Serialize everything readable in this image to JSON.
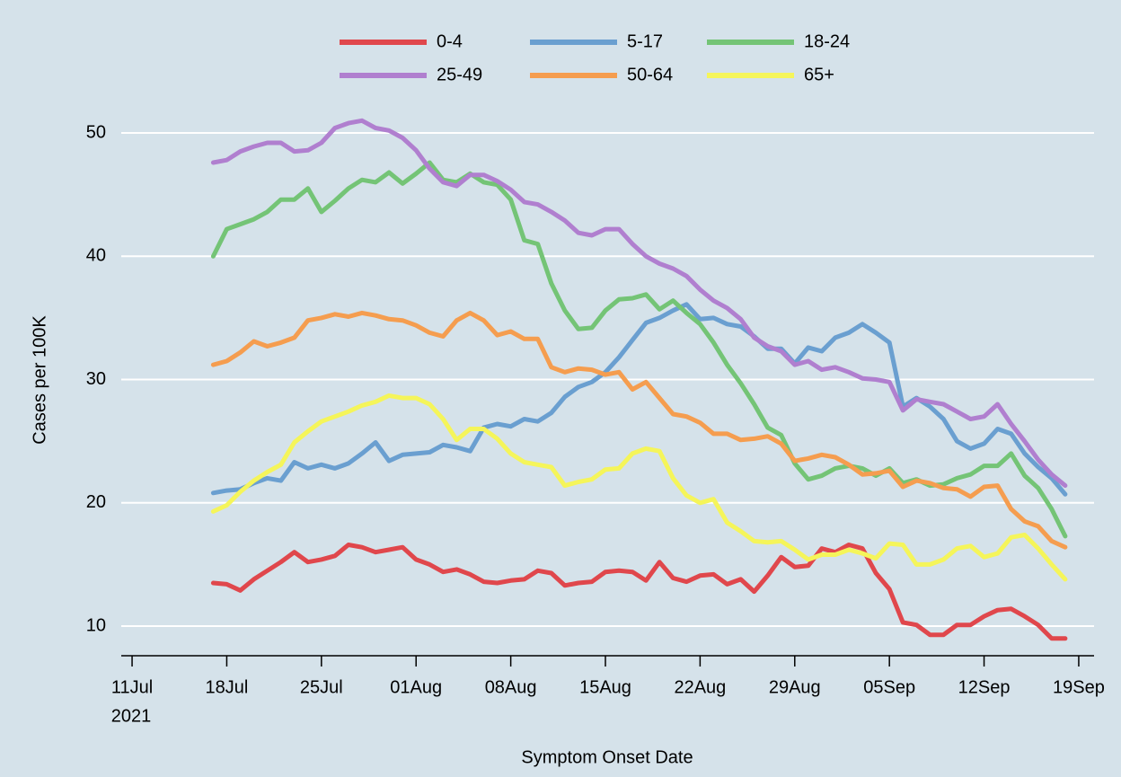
{
  "chart_data": {
    "type": "line",
    "xlabel": "Symptom Onset Date",
    "ylabel": "Cases per 100K",
    "x": [
      "2021-07-17",
      "2021-07-18",
      "2021-07-19",
      "2021-07-20",
      "2021-07-21",
      "2021-07-22",
      "2021-07-23",
      "2021-07-24",
      "2021-07-25",
      "2021-07-26",
      "2021-07-27",
      "2021-07-28",
      "2021-07-29",
      "2021-07-30",
      "2021-07-31",
      "2021-08-01",
      "2021-08-02",
      "2021-08-03",
      "2021-08-04",
      "2021-08-05",
      "2021-08-06",
      "2021-08-07",
      "2021-08-08",
      "2021-08-09",
      "2021-08-10",
      "2021-08-11",
      "2021-08-12",
      "2021-08-13",
      "2021-08-14",
      "2021-08-15",
      "2021-08-16",
      "2021-08-17",
      "2021-08-18",
      "2021-08-19",
      "2021-08-20",
      "2021-08-21",
      "2021-08-22",
      "2021-08-23",
      "2021-08-24",
      "2021-08-25",
      "2021-08-26",
      "2021-08-27",
      "2021-08-28",
      "2021-08-29",
      "2021-08-30",
      "2021-08-31",
      "2021-09-01",
      "2021-09-02",
      "2021-09-03",
      "2021-09-04",
      "2021-09-05",
      "2021-09-06",
      "2021-09-07",
      "2021-09-08",
      "2021-09-09",
      "2021-09-10",
      "2021-09-11",
      "2021-09-12",
      "2021-09-13",
      "2021-09-14",
      "2021-09-15",
      "2021-09-16",
      "2021-09-17",
      "2021-09-18"
    ],
    "series": [
      {
        "name": "0-4",
        "color": "#e0474c",
        "values": [
          13.5,
          13.4,
          12.9,
          13.8,
          14.5,
          15.2,
          16.0,
          15.2,
          15.4,
          15.7,
          16.6,
          16.4,
          16.0,
          16.2,
          16.4,
          15.4,
          15.0,
          14.4,
          14.6,
          14.2,
          13.6,
          13.5,
          13.7,
          13.8,
          14.5,
          14.3,
          13.3,
          13.5,
          13.6,
          14.4,
          14.5,
          14.4,
          13.7,
          15.2,
          13.9,
          13.6,
          14.1,
          14.2,
          13.4,
          13.8,
          12.8,
          14.1,
          15.6,
          14.8,
          14.9,
          16.3,
          16.0,
          16.6,
          16.3,
          14.3,
          13.0,
          10.3,
          10.1,
          9.3,
          9.3,
          10.1,
          10.1,
          10.8,
          11.3,
          11.4,
          10.8,
          10.1,
          9.0,
          9.0
        ]
      },
      {
        "name": "5-17",
        "color": "#6a9fd0",
        "values": [
          20.8,
          21.0,
          21.1,
          21.6,
          22.0,
          21.8,
          23.3,
          22.8,
          23.1,
          22.8,
          23.2,
          24.0,
          24.9,
          23.4,
          23.9,
          24.0,
          24.1,
          24.7,
          24.5,
          24.2,
          26.1,
          26.4,
          26.2,
          26.8,
          26.6,
          27.3,
          28.6,
          29.4,
          29.8,
          30.6,
          31.8,
          33.2,
          34.6,
          35.0,
          35.6,
          36.1,
          34.9,
          35.0,
          34.5,
          34.3,
          33.5,
          32.5,
          32.5,
          31.3,
          32.6,
          32.3,
          33.4,
          33.8,
          34.5,
          33.8,
          33.0,
          27.8,
          28.5,
          27.8,
          26.8,
          25.0,
          24.4,
          24.8,
          26.0,
          25.6,
          24.0,
          22.9,
          22.0,
          20.7
        ]
      },
      {
        "name": "18-24",
        "color": "#74c476",
        "values": [
          40.0,
          42.2,
          42.6,
          43.0,
          43.6,
          44.6,
          44.6,
          45.5,
          43.6,
          44.5,
          45.5,
          46.2,
          46.0,
          46.8,
          45.9,
          46.7,
          47.6,
          46.2,
          46.0,
          46.7,
          46.0,
          45.8,
          44.6,
          41.3,
          41.0,
          37.8,
          35.6,
          34.1,
          34.2,
          35.6,
          36.5,
          36.6,
          36.9,
          35.7,
          36.4,
          35.4,
          34.5,
          33.0,
          31.2,
          29.7,
          28.0,
          26.1,
          25.5,
          23.2,
          21.9,
          22.2,
          22.8,
          23.0,
          22.8,
          22.2,
          22.8,
          21.6,
          21.9,
          21.4,
          21.5,
          22.0,
          22.3,
          23.0,
          23.0,
          24.0,
          22.2,
          21.2,
          19.5,
          17.3
        ]
      },
      {
        "name": "25-49",
        "color": "#b07fcf",
        "values": [
          47.6,
          47.8,
          48.5,
          48.9,
          49.2,
          49.2,
          48.5,
          48.6,
          49.2,
          50.4,
          50.8,
          51.0,
          50.4,
          50.2,
          49.6,
          48.6,
          47.1,
          46.0,
          45.7,
          46.6,
          46.6,
          46.1,
          45.4,
          44.4,
          44.2,
          43.6,
          42.9,
          41.9,
          41.7,
          42.2,
          42.2,
          41.0,
          40.0,
          39.4,
          39.0,
          38.4,
          37.3,
          36.4,
          35.8,
          34.9,
          33.4,
          32.7,
          32.3,
          31.2,
          31.5,
          30.8,
          31.0,
          30.6,
          30.1,
          30.0,
          29.8,
          27.5,
          28.4,
          28.2,
          28.0,
          27.4,
          26.8,
          27.0,
          28.0,
          26.4,
          25.0,
          23.5,
          22.3,
          21.4
        ]
      },
      {
        "name": "50-64",
        "color": "#f59d4f",
        "values": [
          31.2,
          31.5,
          32.2,
          33.1,
          32.7,
          33.0,
          33.4,
          34.8,
          35.0,
          35.3,
          35.1,
          35.4,
          35.2,
          34.9,
          34.8,
          34.4,
          33.8,
          33.5,
          34.8,
          35.4,
          34.8,
          33.6,
          33.9,
          33.3,
          33.3,
          31.0,
          30.6,
          30.9,
          30.8,
          30.4,
          30.6,
          29.2,
          29.8,
          28.5,
          27.2,
          27.0,
          26.5,
          25.6,
          25.6,
          25.1,
          25.2,
          25.4,
          24.8,
          23.4,
          23.6,
          23.9,
          23.7,
          23.1,
          22.3,
          22.4,
          22.6,
          21.3,
          21.8,
          21.6,
          21.2,
          21.1,
          20.5,
          21.3,
          21.4,
          19.5,
          18.5,
          18.1,
          16.9,
          16.4
        ]
      },
      {
        "name": "65+",
        "color": "#f5f55a",
        "values": [
          19.3,
          19.8,
          20.9,
          21.8,
          22.5,
          23.1,
          24.9,
          25.8,
          26.6,
          27.0,
          27.4,
          27.9,
          28.2,
          28.7,
          28.5,
          28.5,
          28.0,
          26.8,
          25.1,
          26.0,
          26.0,
          25.2,
          24.0,
          23.3,
          23.1,
          22.9,
          21.4,
          21.7,
          21.9,
          22.7,
          22.8,
          24.0,
          24.4,
          24.2,
          22.0,
          20.6,
          20.0,
          20.3,
          18.4,
          17.7,
          16.9,
          16.8,
          16.9,
          16.2,
          15.4,
          15.8,
          15.8,
          16.2,
          15.9,
          15.5,
          16.7,
          16.6,
          15.0,
          15.0,
          15.4,
          16.3,
          16.5,
          15.6,
          15.9,
          17.2,
          17.4,
          16.3,
          15.0,
          13.8
        ]
      }
    ],
    "xlim": [
      "2021-07-10",
      "2021-09-20"
    ],
    "xticks": [
      {
        "value": "2021-07-11",
        "label": "11Jul",
        "sublabel": "2021"
      },
      {
        "value": "2021-07-18",
        "label": "18Jul"
      },
      {
        "value": "2021-07-25",
        "label": "25Jul"
      },
      {
        "value": "2021-08-01",
        "label": "01Aug"
      },
      {
        "value": "2021-08-08",
        "label": "08Aug"
      },
      {
        "value": "2021-08-15",
        "label": "15Aug"
      },
      {
        "value": "2021-08-22",
        "label": "22Aug"
      },
      {
        "value": "2021-08-29",
        "label": "29Aug"
      },
      {
        "value": "2021-09-05",
        "label": "05Sep"
      },
      {
        "value": "2021-09-12",
        "label": "12Sep"
      },
      {
        "value": "2021-09-19",
        "label": "19Sep"
      }
    ],
    "ylim": [
      7.6,
      53.5
    ],
    "yticks": [
      10,
      20,
      30,
      40,
      50
    ],
    "grid": true,
    "legend": "top"
  }
}
